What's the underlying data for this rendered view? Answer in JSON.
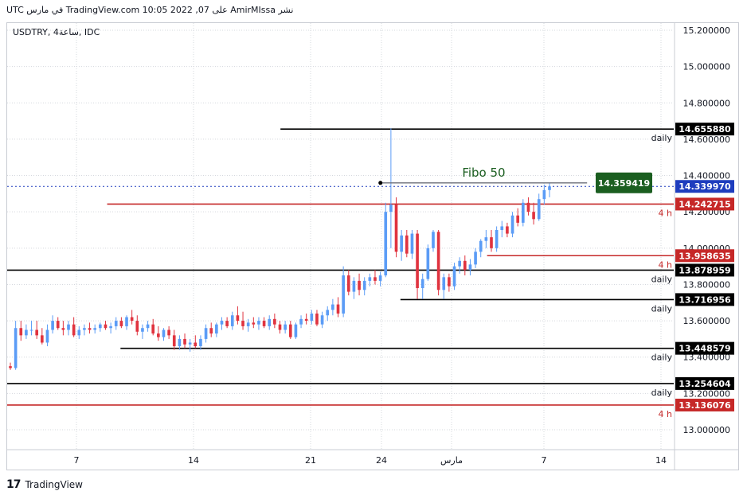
{
  "header": {
    "text": "نشر AmirMIssa على TradingView.com 10:05 2022 ,07 في مارس UTC"
  },
  "symbol_label": "USDTRY, 4ساعة, IDC",
  "footer": {
    "logo_icon": "tradingview-logo-icon",
    "brand": "TradingView"
  },
  "colors": {
    "up": "#5b9cf6",
    "down": "#e0333f",
    "support_line": "#000000",
    "red_line": "#c62828",
    "fibo_badge": "#1b5e20",
    "current_badge": "#1e3dbe"
  },
  "chart_data": {
    "type": "candlestick",
    "symbol": "USDTRY",
    "timeframe": "4ساعة",
    "source": "IDC",
    "ylim": [
      12.89,
      15.225
    ],
    "y_ticks": [
      "15.200000",
      "15.000000",
      "14.800000",
      "14.600000",
      "14.400000",
      "14.200000",
      "14.000000",
      "13.800000",
      "13.600000",
      "13.400000",
      "13.200000",
      "13.000000"
    ],
    "x_ticks": [
      "7",
      "14",
      "21",
      "24",
      "مارس",
      "7",
      "14"
    ],
    "current_price": "14.339970",
    "levels": [
      {
        "price": 14.65588,
        "label": "14.655880",
        "tag": "daily",
        "color": "black",
        "from": 0.41
      },
      {
        "price": 14.242715,
        "label": "14.242715",
        "tag": "4 h",
        "color": "red",
        "from": 0.15
      },
      {
        "price": 13.958635,
        "label": "13.958635",
        "tag": "4 h",
        "color": "red",
        "from": 0.72
      },
      {
        "price": 13.878959,
        "label": "13.878959",
        "tag": "daily",
        "color": "black",
        "from": 0.0
      },
      {
        "price": 13.716956,
        "label": "13.716956",
        "tag": "daily",
        "color": "black",
        "from": 0.59
      },
      {
        "price": 13.448579,
        "label": "13.448579",
        "tag": "daily",
        "color": "black",
        "from": 0.17
      },
      {
        "price": 13.254604,
        "label": "13.254604",
        "tag": "daily",
        "color": "black",
        "from": 0.0
      },
      {
        "price": 13.136076,
        "label": "13.136076",
        "tag": "4 h",
        "color": "red",
        "from": 0.0
      }
    ],
    "fibo": {
      "label": "Fibo 50",
      "price": 14.359419,
      "price_label": "14.359419",
      "from": 0.56,
      "to": 0.87
    },
    "candles": [
      [
        13.35,
        13.37,
        13.33,
        13.34
      ],
      [
        13.34,
        13.6,
        13.33,
        13.56
      ],
      [
        13.56,
        13.6,
        13.49,
        13.52
      ],
      [
        13.52,
        13.58,
        13.5,
        13.55
      ],
      [
        13.55,
        13.6,
        13.52,
        13.55
      ],
      [
        13.55,
        13.6,
        13.5,
        13.52
      ],
      [
        13.52,
        13.56,
        13.47,
        13.48
      ],
      [
        13.48,
        13.58,
        13.46,
        13.55
      ],
      [
        13.55,
        13.63,
        13.53,
        13.6
      ],
      [
        13.6,
        13.62,
        13.55,
        13.56
      ],
      [
        13.56,
        13.6,
        13.52,
        13.55
      ],
      [
        13.55,
        13.6,
        13.52,
        13.58
      ],
      [
        13.58,
        13.62,
        13.51,
        13.52
      ],
      [
        13.52,
        13.57,
        13.5,
        13.55
      ],
      [
        13.55,
        13.58,
        13.52,
        13.56
      ],
      [
        13.56,
        13.59,
        13.53,
        13.55
      ],
      [
        13.55,
        13.58,
        13.53,
        13.56
      ],
      [
        13.56,
        13.59,
        13.54,
        13.58
      ],
      [
        13.58,
        13.6,
        13.55,
        13.56
      ],
      [
        13.56,
        13.59,
        13.53,
        13.57
      ],
      [
        13.57,
        13.62,
        13.55,
        13.6
      ],
      [
        13.6,
        13.62,
        13.56,
        13.57
      ],
      [
        13.57,
        13.63,
        13.55,
        13.62
      ],
      [
        13.62,
        13.66,
        13.58,
        13.6
      ],
      [
        13.6,
        13.63,
        13.52,
        13.54
      ],
      [
        13.54,
        13.58,
        13.5,
        13.56
      ],
      [
        13.56,
        13.6,
        13.54,
        13.58
      ],
      [
        13.58,
        13.61,
        13.52,
        13.53
      ],
      [
        13.53,
        13.57,
        13.49,
        13.51
      ],
      [
        13.51,
        13.56,
        13.49,
        13.55
      ],
      [
        13.55,
        13.57,
        13.5,
        13.52
      ],
      [
        13.52,
        13.55,
        13.44,
        13.46
      ],
      [
        13.46,
        13.52,
        13.44,
        13.5
      ],
      [
        13.5,
        13.53,
        13.45,
        13.47
      ],
      [
        13.47,
        13.5,
        13.43,
        13.48
      ],
      [
        13.48,
        13.52,
        13.45,
        13.46
      ],
      [
        13.46,
        13.52,
        13.44,
        13.5
      ],
      [
        13.5,
        13.58,
        13.48,
        13.56
      ],
      [
        13.56,
        13.59,
        13.51,
        13.53
      ],
      [
        13.53,
        13.59,
        13.51,
        13.58
      ],
      [
        13.58,
        13.62,
        13.55,
        13.6
      ],
      [
        13.6,
        13.62,
        13.56,
        13.57
      ],
      [
        13.57,
        13.65,
        13.55,
        13.63
      ],
      [
        13.63,
        13.68,
        13.58,
        13.6
      ],
      [
        13.6,
        13.65,
        13.55,
        13.57
      ],
      [
        13.57,
        13.61,
        13.54,
        13.59
      ],
      [
        13.59,
        13.62,
        13.56,
        13.58
      ],
      [
        13.58,
        13.62,
        13.55,
        13.6
      ],
      [
        13.6,
        13.62,
        13.56,
        13.57
      ],
      [
        13.57,
        13.63,
        13.55,
        13.61
      ],
      [
        13.61,
        13.64,
        13.56,
        13.58
      ],
      [
        13.58,
        13.6,
        13.53,
        13.55
      ],
      [
        13.55,
        13.6,
        13.53,
        13.58
      ],
      [
        13.58,
        13.6,
        13.5,
        13.51
      ],
      [
        13.51,
        13.59,
        13.5,
        13.58
      ],
      [
        13.58,
        13.63,
        13.56,
        13.61
      ],
      [
        13.61,
        13.64,
        13.58,
        13.6
      ],
      [
        13.6,
        13.66,
        13.58,
        13.64
      ],
      [
        13.64,
        13.66,
        13.57,
        13.58
      ],
      [
        13.58,
        13.65,
        13.56,
        13.63
      ],
      [
        13.63,
        13.68,
        13.6,
        13.66
      ],
      [
        13.66,
        13.72,
        13.63,
        13.69
      ],
      [
        13.69,
        13.73,
        13.62,
        13.64
      ],
      [
        13.64,
        13.9,
        13.62,
        13.85
      ],
      [
        13.85,
        13.88,
        13.74,
        13.76
      ],
      [
        13.76,
        13.84,
        13.72,
        13.82
      ],
      [
        13.82,
        13.86,
        13.74,
        13.77
      ],
      [
        13.77,
        13.84,
        13.74,
        13.82
      ],
      [
        13.82,
        13.86,
        13.79,
        13.84
      ],
      [
        13.84,
        13.88,
        13.8,
        13.82
      ],
      [
        13.82,
        13.87,
        13.79,
        13.85
      ],
      [
        13.85,
        14.25,
        13.84,
        14.2
      ],
      [
        14.2,
        14.66,
        14.0,
        14.24
      ],
      [
        14.24,
        14.28,
        13.95,
        13.98
      ],
      [
        13.98,
        14.1,
        13.93,
        14.07
      ],
      [
        14.07,
        14.1,
        13.95,
        13.97
      ],
      [
        13.97,
        14.1,
        13.94,
        14.08
      ],
      [
        14.08,
        14.1,
        13.72,
        13.78
      ],
      [
        13.78,
        13.86,
        13.72,
        13.83
      ],
      [
        13.83,
        14.02,
        13.82,
        14.0
      ],
      [
        14.0,
        14.1,
        13.98,
        14.09
      ],
      [
        14.09,
        14.1,
        13.74,
        13.77
      ],
      [
        13.77,
        13.86,
        13.72,
        13.84
      ],
      [
        13.84,
        13.86,
        13.76,
        13.79
      ],
      [
        13.79,
        13.92,
        13.77,
        13.9
      ],
      [
        13.9,
        13.95,
        13.86,
        13.93
      ],
      [
        13.93,
        13.96,
        13.85,
        13.88
      ],
      [
        13.88,
        13.94,
        13.85,
        13.91
      ],
      [
        13.91,
        14.0,
        13.89,
        13.98
      ],
      [
        13.98,
        14.05,
        13.95,
        14.04
      ],
      [
        14.04,
        14.1,
        14.0,
        14.06
      ],
      [
        14.06,
        14.1,
        13.98,
        14.0
      ],
      [
        14.0,
        14.12,
        13.98,
        14.1
      ],
      [
        14.1,
        14.15,
        14.06,
        14.12
      ],
      [
        14.12,
        14.14,
        14.06,
        14.08
      ],
      [
        14.08,
        14.2,
        14.06,
        14.18
      ],
      [
        14.18,
        14.22,
        14.12,
        14.14
      ],
      [
        14.14,
        14.27,
        14.12,
        14.25
      ],
      [
        14.25,
        14.28,
        14.18,
        14.2
      ],
      [
        14.2,
        14.25,
        14.13,
        14.16
      ],
      [
        14.16,
        14.3,
        14.15,
        14.27
      ],
      [
        14.27,
        14.35,
        14.24,
        14.32
      ],
      [
        14.32,
        14.36,
        14.28,
        14.34
      ]
    ]
  }
}
